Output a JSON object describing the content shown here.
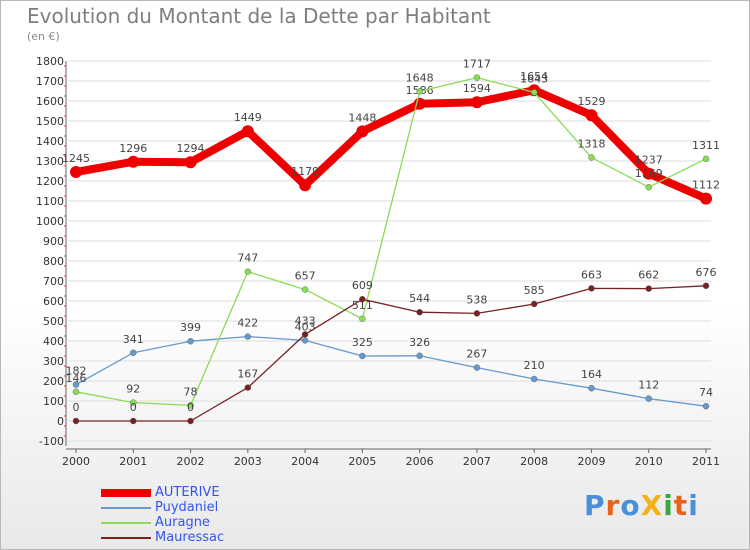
{
  "title": "Evolution du Montant de la Dette par Habitant",
  "unit_label": "(en €)",
  "logo": {
    "text": "ProXiti",
    "colors": [
      "#4a90d9",
      "#e8631a",
      "#4a90d9",
      "#f2b21b",
      "#3da53d",
      "#e8631a",
      "#4a90d9"
    ]
  },
  "chart_data": {
    "type": "line",
    "x": [
      "2000",
      "2001",
      "2002",
      "2003",
      "2004",
      "2005",
      "2006",
      "2007",
      "2008",
      "2009",
      "2010",
      "2011"
    ],
    "ylim": [
      -100,
      1800
    ],
    "yticks": [
      -100,
      0,
      100,
      200,
      300,
      400,
      500,
      600,
      700,
      800,
      900,
      1000,
      1100,
      1200,
      1300,
      1400,
      1500,
      1600,
      1700,
      1800
    ],
    "grid": true,
    "legend_position": "bottom-left",
    "series": [
      {
        "name": "AUTERIVE",
        "color": "#ee0000",
        "values": [
          1245,
          1296,
          1294,
          1449,
          1179,
          1448,
          1586,
          1594,
          1654,
          1529,
          1237,
          1112
        ]
      },
      {
        "name": "Puydaniel",
        "color": "#6699cc",
        "values": [
          182,
          341,
          399,
          422,
          403,
          325,
          326,
          267,
          210,
          164,
          112,
          74
        ]
      },
      {
        "name": "Auragne",
        "color": "#88dd55",
        "values": [
          146,
          92,
          78,
          747,
          657,
          511,
          1648,
          1717,
          1643,
          1318,
          1169,
          1311
        ]
      },
      {
        "name": "Mauressac",
        "color": "#772222",
        "values": [
          0,
          0,
          0,
          167,
          433,
          609,
          544,
          538,
          585,
          663,
          662,
          676
        ]
      }
    ]
  }
}
